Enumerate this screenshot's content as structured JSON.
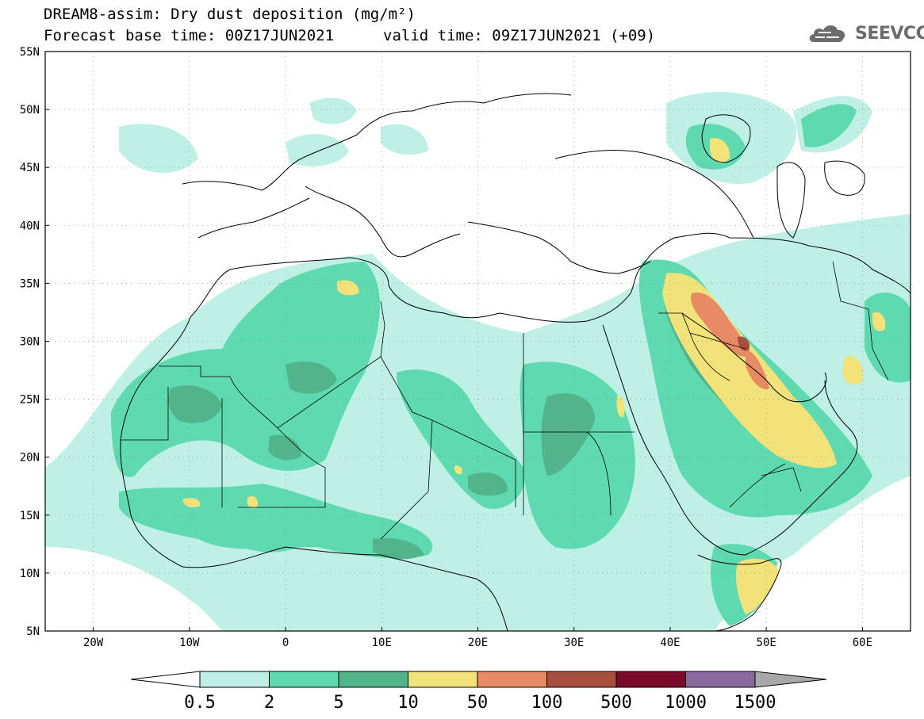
{
  "header": {
    "line1": "DREAM8-assim: Dry dust deposition (mg/m²)",
    "line2a": "Forecast base time: 00Z17JUN2021",
    "line2b": "valid time: 09Z17JUN2021 (+09)",
    "logo_text": "SEEVCCC"
  },
  "map": {
    "lat_labels": [
      "55N",
      "50N",
      "45N",
      "40N",
      "35N",
      "30N",
      "25N",
      "20N",
      "15N",
      "10N",
      "5N"
    ],
    "lon_labels": [
      "20W",
      "10W",
      "0",
      "10E",
      "20E",
      "30E",
      "40E",
      "50E",
      "60E"
    ],
    "lon_range": [
      -25,
      65
    ],
    "lat_range": [
      5,
      55
    ]
  },
  "legend": {
    "labels": [
      "0.5",
      "2",
      "5",
      "10",
      "50",
      "100",
      "500",
      "1000",
      "1500"
    ],
    "colors": [
      "#bff0e6",
      "#5fd9b0",
      "#52b48a",
      "#f2e27a",
      "#e88a64",
      "#a84e3e",
      "#7a0a2a",
      "#8a6a9e",
      "#a8a8a8"
    ]
  }
}
